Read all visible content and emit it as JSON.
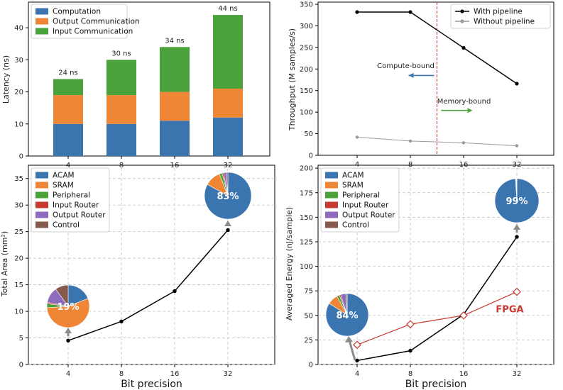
{
  "chart_data": [
    {
      "panel": "latency",
      "type": "bar",
      "stacked": true,
      "categories": [
        "4",
        "8",
        "16",
        "32"
      ],
      "series": [
        {
          "name": "Computation",
          "color": "#3a75b0",
          "values": [
            10,
            10,
            11,
            12
          ]
        },
        {
          "name": "Output Communication",
          "color": "#ef8636",
          "values": [
            9,
            9,
            9,
            9
          ]
        },
        {
          "name": "Input Communication",
          "color": "#4ca23a",
          "values": [
            5,
            11,
            14,
            23
          ]
        }
      ],
      "data_labels": [
        "24 ns",
        "30 ns",
        "34 ns",
        "44 ns"
      ],
      "ylabel": "Latency (ns)",
      "ylim": [
        0,
        48
      ],
      "yticks": [
        "0",
        "10",
        "20",
        "30",
        "40"
      ],
      "legend": "top-left"
    },
    {
      "panel": "throughput",
      "type": "line",
      "categories": [
        "4",
        "8",
        "16",
        "32"
      ],
      "series": [
        {
          "name": "With pipeline",
          "color": "#000000",
          "values": [
            332,
            332,
            249,
            166
          ]
        },
        {
          "name": "Without pipeline",
          "color": "#999999",
          "values": [
            42,
            33,
            29,
            22
          ]
        }
      ],
      "ylabel": "Throughput (M samples/s)",
      "ylim": [
        0,
        355
      ],
      "yticks": [
        "0",
        "50",
        "100",
        "150",
        "200",
        "250",
        "300",
        "350"
      ],
      "divider_at": 1.5,
      "annotations": [
        {
          "text": "Compute-bound",
          "color": "#3a75b0"
        },
        {
          "text": "Memory-bound",
          "color": "#4ca23a"
        }
      ],
      "legend": "top-right"
    },
    {
      "panel": "area",
      "type": "line",
      "categories": [
        "4",
        "8",
        "16",
        "32"
      ],
      "series": [
        {
          "name": "",
          "color": "#000000",
          "values": [
            4.5,
            8.1,
            13.8,
            25.3
          ]
        }
      ],
      "xlabel": "Bit precision",
      "ylabel": "Total Area (mm²)",
      "ylim": [
        0,
        37.5
      ],
      "yticks": [
        "0",
        "5",
        "10",
        "15",
        "20",
        "25",
        "30",
        "35"
      ],
      "grid": true,
      "legend": "top-left",
      "legend_items": [
        {
          "name": "ACAM",
          "color": "#3a75b0"
        },
        {
          "name": "SRAM",
          "color": "#ef8636"
        },
        {
          "name": "Peripheral",
          "color": "#4ca23a"
        },
        {
          "name": "Input Router",
          "color": "#c63a32"
        },
        {
          "name": "Output Router",
          "color": "#8e6bbf"
        },
        {
          "name": "Control",
          "color": "#875a4e"
        }
      ],
      "pies": [
        {
          "at": "4",
          "label": "19%",
          "slices": [
            19,
            55,
            3,
            1,
            12,
            10
          ]
        },
        {
          "at": "32",
          "label": "83%",
          "slices": [
            83,
            11,
            2,
            1,
            2,
            1
          ]
        }
      ]
    },
    {
      "panel": "energy",
      "type": "line",
      "categories": [
        "4",
        "8",
        "16",
        "32"
      ],
      "series": [
        {
          "name": "",
          "color": "#000000",
          "values": [
            4,
            14,
            51,
            130
          ]
        },
        {
          "name": "FPGA",
          "color": "#c63a32",
          "values": [
            20,
            41,
            50,
            74
          ]
        }
      ],
      "xlabel": "Bit precision",
      "ylabel": "Averaged Energy (nJ/sample)",
      "ylim": [
        0,
        203
      ],
      "yticks": [
        "0",
        "25",
        "50",
        "75",
        "100",
        "125",
        "150",
        "175",
        "200"
      ],
      "grid": true,
      "legend": "top-left",
      "legend_items": [
        {
          "name": "ACAM",
          "color": "#3a75b0"
        },
        {
          "name": "SRAM",
          "color": "#ef8636"
        },
        {
          "name": "Peripheral",
          "color": "#4ca23a"
        },
        {
          "name": "Input Router",
          "color": "#c63a32"
        },
        {
          "name": "Output Router",
          "color": "#8e6bbf"
        },
        {
          "name": "Control",
          "color": "#875a4e"
        }
      ],
      "pies": [
        {
          "at": "4",
          "label": "84%",
          "slices": [
            84,
            8,
            2,
            1,
            4,
            1
          ]
        },
        {
          "at": "32",
          "label": "99%",
          "slices": [
            99,
            0.5,
            0.2,
            0.1,
            0.1,
            0.1
          ]
        }
      ]
    }
  ]
}
